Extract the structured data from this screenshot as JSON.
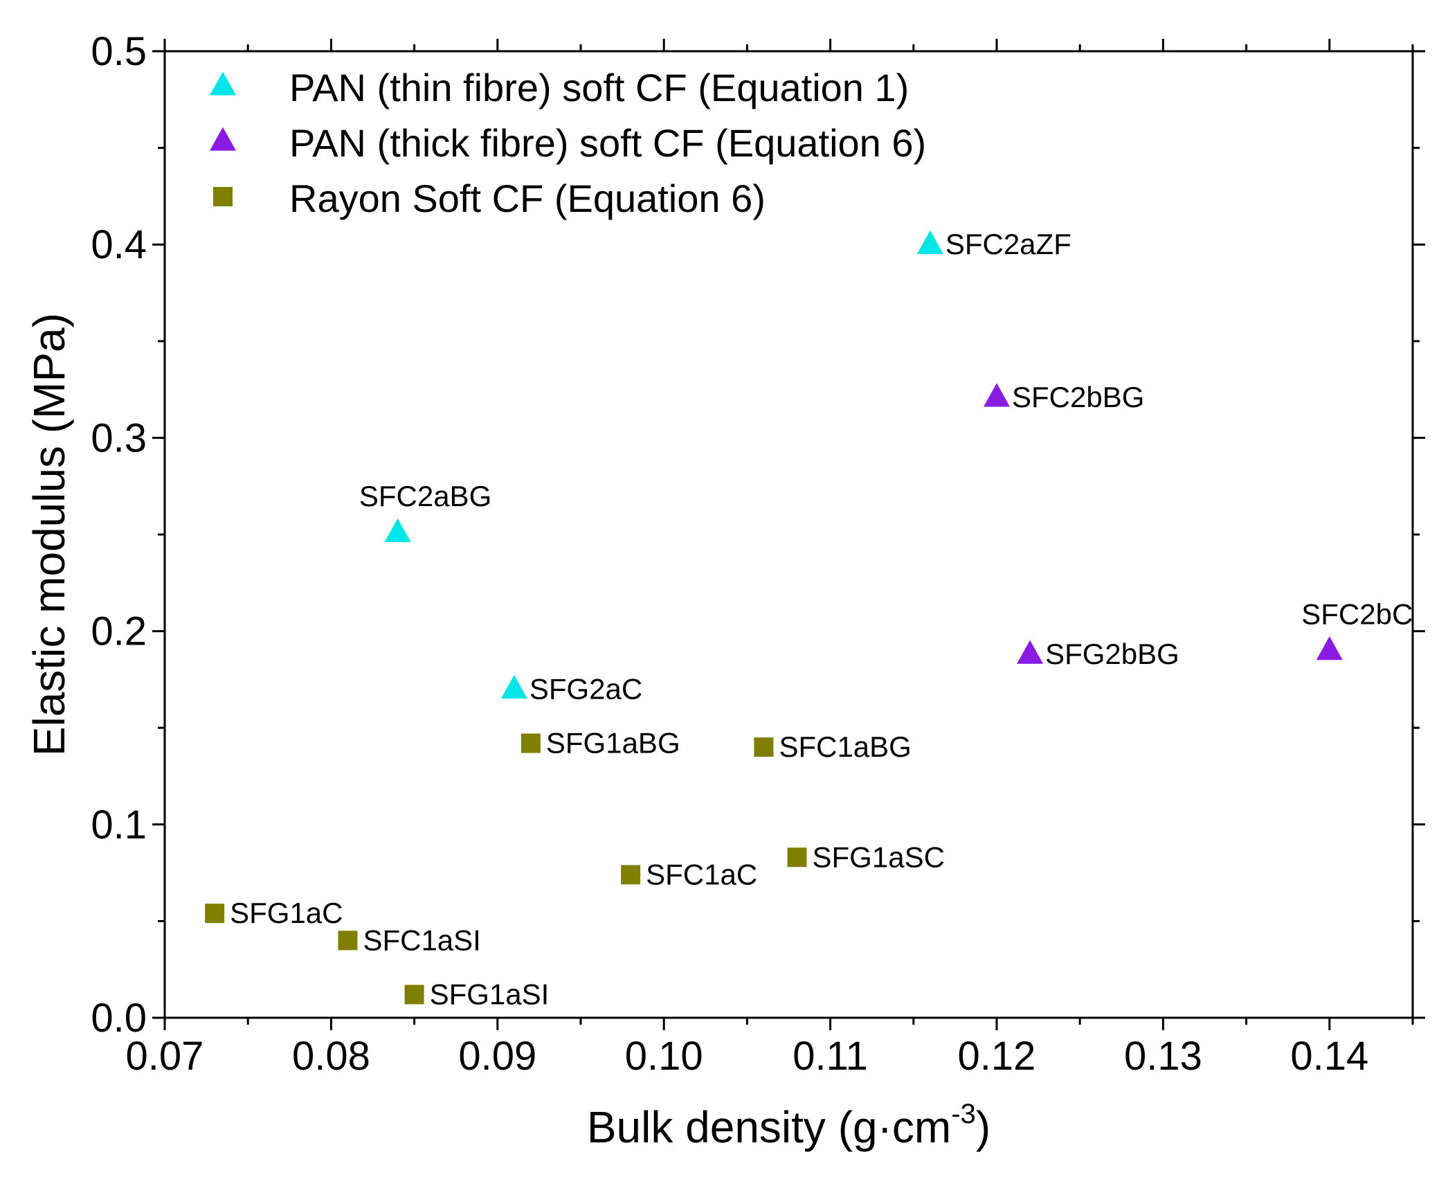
{
  "chart_data": {
    "type": "scatter",
    "title": "",
    "xlabel": "Bulk density (g·cm",
    "xlabel_sup": "-3",
    "xlabel_close": ")",
    "ylabel": "Elastic modulus (MPa)",
    "xlim": [
      0.07,
      0.145
    ],
    "ylim": [
      0.0,
      0.5
    ],
    "xticks": [
      0.07,
      0.08,
      0.09,
      0.1,
      0.11,
      0.12,
      0.13,
      0.14
    ],
    "xtick_labels": [
      "0.07",
      "0.08",
      "0.09",
      "0.10",
      "0.11",
      "0.12",
      "0.13",
      "0.14"
    ],
    "yticks": [
      0.0,
      0.1,
      0.2,
      0.3,
      0.4,
      0.5
    ],
    "ytick_labels": [
      "0.0",
      "0.1",
      "0.2",
      "0.3",
      "0.4",
      "0.5"
    ],
    "grid": false,
    "legend_position": "top-left",
    "series": [
      {
        "name": "PAN (thin fibre) soft CF (Equation 1)",
        "marker": "triangle",
        "color": "#00e5e5",
        "points": [
          {
            "x": 0.116,
            "y": 0.4,
            "label": "SFC2aZF",
            "label_pos": "right"
          },
          {
            "x": 0.084,
            "y": 0.251,
            "label": "SFC2aBG",
            "label_pos": "above"
          },
          {
            "x": 0.091,
            "y": 0.17,
            "label": "SFG2aC",
            "label_pos": "right"
          }
        ]
      },
      {
        "name": "PAN (thick fibre) soft CF (Equation 6)",
        "marker": "triangle",
        "color": "#8a1be2",
        "points": [
          {
            "x": 0.12,
            "y": 0.321,
            "label": "SFC2bBG",
            "label_pos": "right"
          },
          {
            "x": 0.122,
            "y": 0.188,
            "label": "SFG2bBG",
            "label_pos": "right"
          },
          {
            "x": 0.14,
            "y": 0.19,
            "label": "SFC2bC",
            "label_pos": "above"
          }
        ]
      },
      {
        "name": "Rayon Soft CF (Equation 6)",
        "marker": "square",
        "color": "#808000",
        "points": [
          {
            "x": 0.092,
            "y": 0.142,
            "label": "SFG1aBG",
            "label_pos": "right"
          },
          {
            "x": 0.106,
            "y": 0.14,
            "label": "SFC1aBG",
            "label_pos": "right"
          },
          {
            "x": 0.108,
            "y": 0.083,
            "label": "SFG1aSC",
            "label_pos": "right"
          },
          {
            "x": 0.098,
            "y": 0.074,
            "label": "SFC1aC",
            "label_pos": "right"
          },
          {
            "x": 0.073,
            "y": 0.054,
            "label": "SFG1aC",
            "label_pos": "right"
          },
          {
            "x": 0.081,
            "y": 0.04,
            "label": "SFC1aSI",
            "label_pos": "right"
          },
          {
            "x": 0.085,
            "y": 0.012,
            "label": "SFG1aSI",
            "label_pos": "right"
          }
        ]
      }
    ]
  }
}
